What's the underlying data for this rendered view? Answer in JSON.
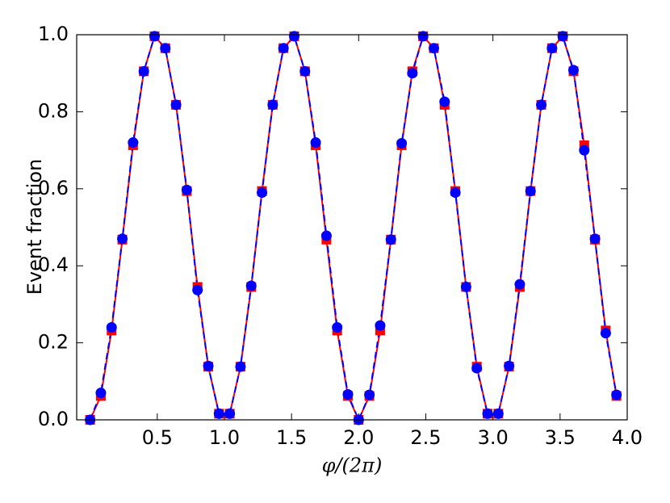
{
  "chart_data": {
    "type": "line",
    "xlabel": "φ/(2π)",
    "ylabel": "Event fraction",
    "x": [
      0,
      0.08,
      0.16,
      0.24,
      0.32,
      0.4,
      0.48,
      0.56,
      0.64,
      0.72,
      0.8,
      0.88,
      0.96,
      1.04,
      1.12,
      1.2,
      1.28,
      1.36,
      1.44,
      1.52,
      1.6,
      1.68,
      1.76,
      1.84,
      1.92,
      2.0,
      2.08,
      2.16,
      2.24,
      2.32,
      2.4,
      2.48,
      2.56,
      2.64,
      2.72,
      2.8,
      2.88,
      2.96,
      3.04,
      3.12,
      3.2,
      3.28,
      3.36,
      3.44,
      3.52,
      3.6,
      3.68,
      3.76,
      3.84,
      3.92
    ],
    "series": [
      {
        "color": "#ff0000",
        "marker": "square",
        "dashed": false,
        "values": [
          0,
          0.062,
          0.232,
          0.468,
          0.713,
          0.905,
          0.996,
          0.965,
          0.818,
          0.594,
          0.345,
          0.138,
          0.016,
          0.016,
          0.138,
          0.345,
          0.594,
          0.818,
          0.965,
          0.996,
          0.905,
          0.713,
          0.468,
          0.232,
          0.062,
          0,
          0.062,
          0.232,
          0.468,
          0.713,
          0.905,
          0.996,
          0.965,
          0.818,
          0.594,
          0.345,
          0.138,
          0.016,
          0.016,
          0.138,
          0.345,
          0.594,
          0.818,
          0.965,
          0.996,
          0.905,
          0.713,
          0.468,
          0.232,
          0.062
        ]
      },
      {
        "color": "#0000ff",
        "marker": "circle",
        "dashed": true,
        "values": [
          0,
          0.07,
          0.24,
          0.47,
          0.72,
          0.905,
          0.996,
          0.965,
          0.818,
          0.597,
          0.337,
          0.14,
          0.016,
          0.016,
          0.138,
          0.348,
          0.59,
          0.818,
          0.965,
          0.996,
          0.905,
          0.72,
          0.478,
          0.24,
          0.066,
          0,
          0.065,
          0.245,
          0.468,
          0.718,
          0.9,
          0.996,
          0.965,
          0.826,
          0.59,
          0.345,
          0.134,
          0.016,
          0.016,
          0.14,
          0.352,
          0.594,
          0.818,
          0.965,
          0.996,
          0.908,
          0.7,
          0.47,
          0.225,
          0.065
        ]
      }
    ],
    "xlim": [
      -0.1,
      4.0
    ],
    "xticks": [
      0.5,
      {
        "value": 1.0,
        "label": "1.0"
      },
      1.5,
      {
        "value": 2.0,
        "label": "2.0"
      },
      2.5,
      {
        "value": 3.0,
        "label": "3.0"
      },
      3.5,
      {
        "value": 4.0,
        "label": "4.0"
      }
    ],
    "ylim": [
      0,
      1.0
    ],
    "yticks": [
      {
        "value": 0,
        "label": "0.0"
      },
      0.2,
      0.4,
      0.6,
      0.8,
      {
        "value": 1.0,
        "label": "1.0"
      }
    ],
    "grid": false
  }
}
